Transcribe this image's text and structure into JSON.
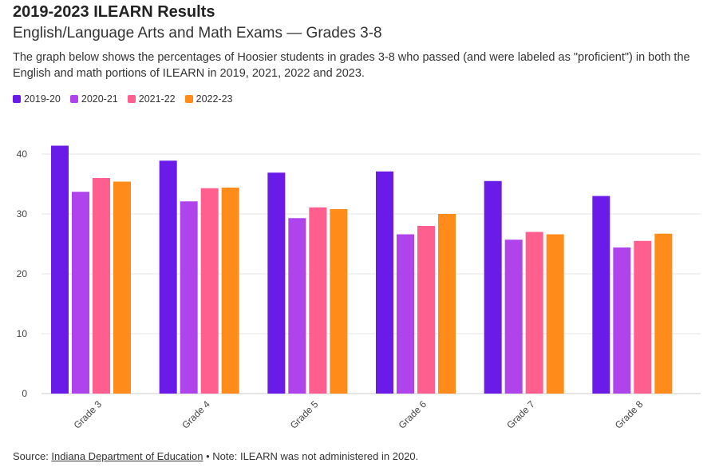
{
  "header": {
    "title": "2019-2023 ILEARN Results",
    "subtitle": "English/Language Arts and Math Exams — Grades 3-8",
    "description": "The graph below shows the percentages of Hoosier students in grades 3-8 who passed (and were labeled as \"proficient\") in both the English and math portions of ILEARN in 2019, 2021, 2022 and 2023."
  },
  "footer": {
    "source_prefix": "Source: ",
    "source_link": "Indiana Department of Education",
    "note": " • Note: ILEARN was not administered in 2020."
  },
  "chart_data": {
    "type": "bar",
    "categories": [
      "Grade 3",
      "Grade 4",
      "Grade 5",
      "Grade 6",
      "Grade 7",
      "Grade 8"
    ],
    "series": [
      {
        "name": "2019-20",
        "color": "#6a1be8",
        "values": [
          41.4,
          38.9,
          36.9,
          37.1,
          35.5,
          33.0
        ]
      },
      {
        "name": "2020-21",
        "color": "#b044ec",
        "values": [
          33.7,
          32.1,
          29.3,
          26.6,
          25.7,
          24.4
        ]
      },
      {
        "name": "2021-22",
        "color": "#ff5f8f",
        "values": [
          36.0,
          34.3,
          31.1,
          28.0,
          27.0,
          25.5
        ]
      },
      {
        "name": "2022-23",
        "color": "#ff8c1a",
        "values": [
          35.4,
          34.4,
          30.8,
          30.0,
          26.6,
          26.7
        ]
      }
    ],
    "yticks": [
      0,
      10,
      20,
      30,
      40
    ],
    "ylim": [
      0,
      45
    ],
    "grid": true,
    "legend_position": "top-left"
  }
}
